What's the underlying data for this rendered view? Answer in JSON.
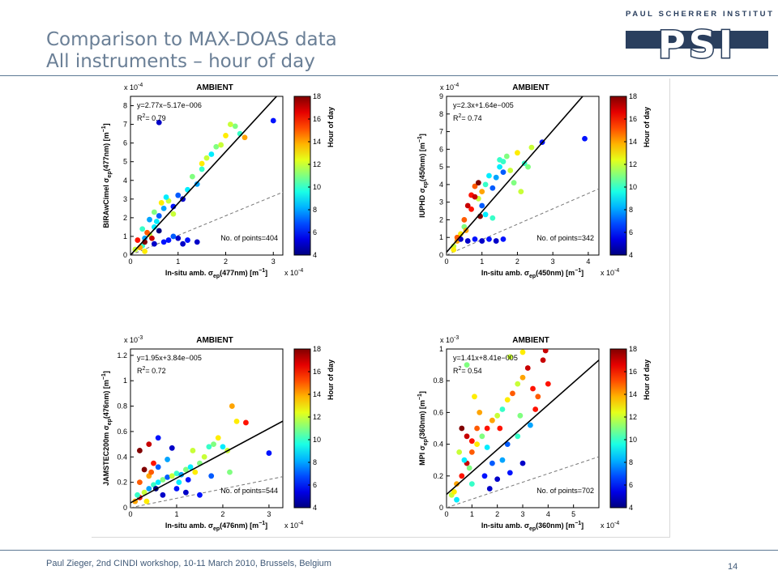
{
  "title": {
    "line1": "Comparison to MAX-DOAS data",
    "line2": "All instruments – hour of day"
  },
  "logo": {
    "text": "PAUL SCHERRER INSTITUT",
    "mark": "PSI"
  },
  "footer": {
    "text": "Paul Zieger, 2nd CINDI workshop, 10-11 March 2010, Brussels, Belgium",
    "page": "14"
  },
  "colors": {
    "title": "#6a7f96",
    "rule": "#5d7994",
    "logo": "#2a3f5e"
  },
  "chart_data": [
    {
      "type": "scatter",
      "title": "AMBIENT",
      "scale_label": "x 10",
      "scale_exp": "-4",
      "ylabel": "BIRAwCimel σ",
      "ylabel_sub": "ep",
      "ylabel_rest": "(477nm)  [m",
      "xlabel": "In-situ amb. σ",
      "xlabel_sub": "ep",
      "xlabel_rest": "(477nm)  [m",
      "xlabel_exp": "x 10",
      "xlabel_exp_pow": "-4",
      "equation": "y=2.77x−5.17e−006",
      "r2": "R",
      "r2_value": "= 0.79",
      "points_text": "No. of points=404",
      "xlim": [
        0,
        3.2
      ],
      "ylim": [
        0,
        8.5
      ],
      "xticks": [
        "0",
        "1",
        "2",
        "3"
      ],
      "xtick_values": [
        0,
        1,
        2,
        3
      ],
      "yticks": [
        "0",
        "1",
        "2",
        "3",
        "4",
        "5",
        "6",
        "7",
        "8"
      ],
      "ytick_values": [
        0,
        1,
        2,
        3,
        4,
        5,
        6,
        7,
        8
      ],
      "fit": {
        "slope": 2.77,
        "intercept": 0
      },
      "colorbar": {
        "label": "Hour of day",
        "min": 4,
        "max": 18,
        "ticks": [
          "4",
          "6",
          "8",
          "10",
          "12",
          "14",
          "16",
          "18"
        ]
      },
      "point_count": 404,
      "points": [
        [
          0.25,
          0.5,
          10
        ],
        [
          0.3,
          0.9,
          8
        ],
        [
          0.4,
          1.1,
          12
        ],
        [
          0.5,
          1.5,
          9
        ],
        [
          0.6,
          2.1,
          7
        ],
        [
          0.7,
          2.5,
          8
        ],
        [
          0.8,
          2.9,
          12
        ],
        [
          0.9,
          2.6,
          6
        ],
        [
          1.0,
          3.2,
          7
        ],
        [
          1.1,
          3.0,
          5
        ],
        [
          1.2,
          3.5,
          9
        ],
        [
          1.3,
          4.2,
          11
        ],
        [
          1.4,
          3.8,
          8
        ],
        [
          1.5,
          4.6,
          10
        ],
        [
          1.6,
          5.2,
          12
        ],
        [
          1.7,
          5.4,
          9
        ],
        [
          1.8,
          5.8,
          11
        ],
        [
          2.0,
          6.4,
          13
        ],
        [
          2.2,
          6.9,
          11
        ],
        [
          2.3,
          6.5,
          10
        ],
        [
          2.4,
          6.3,
          14
        ],
        [
          3.0,
          7.2,
          6
        ],
        [
          0.6,
          7.1,
          5
        ],
        [
          0.4,
          1.9,
          8
        ],
        [
          0.5,
          2.3,
          11
        ],
        [
          0.2,
          0.4,
          14
        ],
        [
          0.15,
          0.8,
          16
        ],
        [
          0.3,
          0.7,
          18
        ],
        [
          0.35,
          1.2,
          15
        ],
        [
          0.1,
          0.3,
          12
        ],
        [
          0.45,
          0.9,
          17
        ],
        [
          0.5,
          0.6,
          5
        ],
        [
          0.8,
          0.8,
          6
        ],
        [
          1.0,
          0.9,
          5
        ],
        [
          1.2,
          0.8,
          6
        ],
        [
          1.4,
          0.7,
          5
        ],
        [
          0.9,
          1.0,
          7
        ],
        [
          0.7,
          0.7,
          6
        ],
        [
          1.1,
          0.6,
          5
        ],
        [
          0.6,
          1.3,
          4
        ],
        [
          0.25,
          1.4,
          10
        ],
        [
          0.3,
          0.2,
          13
        ],
        [
          0.55,
          1.8,
          9
        ],
        [
          0.9,
          2.2,
          12
        ],
        [
          1.5,
          4.9,
          13
        ],
        [
          1.9,
          5.9,
          12
        ],
        [
          0.75,
          3.1,
          9
        ],
        [
          0.65,
          2.8,
          13
        ],
        [
          2.1,
          7.0,
          12
        ]
      ]
    },
    {
      "type": "scatter",
      "title": "AMBIENT",
      "scale_label": "x 10",
      "scale_exp": "-4",
      "ylabel": "IUPHD σ",
      "ylabel_sub": "ep",
      "ylabel_rest": "(450nm)  [m",
      "xlabel": "In-situ amb. σ",
      "xlabel_sub": "ep",
      "xlabel_rest": "(450nm)  [m",
      "xlabel_exp": "x 10",
      "xlabel_exp_pow": "-4",
      "equation": "y=2.3x+1.64e−005",
      "r2": "R",
      "r2_value": "= 0.74",
      "points_text": "No. of points=342",
      "xlim": [
        0,
        4.3
      ],
      "ylim": [
        0,
        9
      ],
      "xticks": [
        "0",
        "1",
        "2",
        "3",
        "4"
      ],
      "xtick_values": [
        0,
        1,
        2,
        3,
        4
      ],
      "yticks": [
        "0",
        "1",
        "2",
        "3",
        "4",
        "5",
        "6",
        "7",
        "8",
        "9"
      ],
      "ytick_values": [
        0,
        1,
        2,
        3,
        4,
        5,
        6,
        7,
        8,
        9
      ],
      "fit": {
        "slope": 2.3,
        "intercept": 0.164
      },
      "colorbar": {
        "label": "Hour of day",
        "min": 4,
        "max": 18,
        "ticks": [
          "4",
          "6",
          "8",
          "10",
          "12",
          "14",
          "16",
          "18"
        ]
      },
      "point_count": 342,
      "points": [
        [
          0.2,
          0.5,
          12
        ],
        [
          0.3,
          0.8,
          14
        ],
        [
          0.4,
          1.2,
          13
        ],
        [
          0.5,
          2.0,
          15
        ],
        [
          0.6,
          2.8,
          17
        ],
        [
          0.7,
          3.4,
          16
        ],
        [
          0.8,
          3.9,
          15
        ],
        [
          0.9,
          3.2,
          12
        ],
        [
          1.0,
          3.6,
          14
        ],
        [
          1.1,
          4.0,
          10
        ],
        [
          1.2,
          4.5,
          9
        ],
        [
          1.3,
          3.8,
          7
        ],
        [
          1.4,
          4.4,
          8
        ],
        [
          1.5,
          5.0,
          9
        ],
        [
          1.6,
          5.3,
          10
        ],
        [
          1.7,
          5.6,
          11
        ],
        [
          1.8,
          4.8,
          12
        ],
        [
          2.0,
          5.8,
          13
        ],
        [
          2.2,
          5.2,
          10
        ],
        [
          2.4,
          6.1,
          12
        ],
        [
          2.7,
          6.4,
          6
        ],
        [
          3.9,
          6.6,
          6
        ],
        [
          0.9,
          4.1,
          18
        ],
        [
          0.8,
          3.3,
          17
        ],
        [
          0.7,
          2.6,
          16
        ],
        [
          1.0,
          2.8,
          7
        ],
        [
          0.4,
          0.9,
          5
        ],
        [
          0.6,
          0.8,
          5
        ],
        [
          0.8,
          0.9,
          6
        ],
        [
          1.0,
          0.8,
          5
        ],
        [
          1.2,
          0.9,
          6
        ],
        [
          1.4,
          0.8,
          5
        ],
        [
          1.6,
          0.9,
          6
        ],
        [
          0.5,
          1.6,
          11
        ],
        [
          0.3,
          1.0,
          15
        ],
        [
          0.2,
          0.3,
          13
        ],
        [
          1.1,
          2.3,
          9
        ],
        [
          1.3,
          2.1,
          10
        ],
        [
          1.9,
          4.1,
          11
        ],
        [
          2.1,
          3.6,
          12
        ],
        [
          1.6,
          4.7,
          7
        ],
        [
          0.95,
          2.2,
          18
        ],
        [
          0.55,
          1.4,
          14
        ],
        [
          1.5,
          5.4,
          10
        ],
        [
          2.3,
          5.0,
          11
        ]
      ]
    },
    {
      "type": "scatter",
      "title": "AMBIENT",
      "scale_label": "x 10",
      "scale_exp": "-3",
      "ylabel": "JAMSTEC200m σ",
      "ylabel_sub": "ep",
      "ylabel_rest": "(476nm)  [m",
      "xlabel": "In-situ amb. σ",
      "xlabel_sub": "ep",
      "xlabel_rest": "(476nm)  [m",
      "xlabel_exp": "x 10",
      "xlabel_exp_pow": "-4",
      "equation": "y=1.95x+3.84e−005",
      "r2": "R",
      "r2_value": "= 0.72",
      "points_text": "No. of points=544",
      "xlim": [
        0,
        3.3
      ],
      "ylim": [
        0,
        1.25
      ],
      "xticks": [
        "0",
        "1",
        "2",
        "3"
      ],
      "xtick_values": [
        0,
        1,
        2,
        3
      ],
      "yticks": [
        "0",
        "0.2",
        "0.4",
        "0.6",
        "0.8",
        "1",
        "1.2"
      ],
      "ytick_values": [
        0,
        0.2,
        0.4,
        0.6,
        0.8,
        1,
        1.2
      ],
      "fit": {
        "slope": 0.195,
        "intercept": 0.0384
      },
      "colorbar": {
        "label": "Hour of day",
        "min": 4,
        "max": 18,
        "ticks": [
          "4",
          "6",
          "8",
          "10",
          "12",
          "14",
          "16",
          "18"
        ]
      },
      "point_count": 544,
      "points": [
        [
          0.1,
          0.05,
          14
        ],
        [
          0.2,
          0.08,
          16
        ],
        [
          0.3,
          0.12,
          12
        ],
        [
          0.4,
          0.15,
          8
        ],
        [
          0.5,
          0.18,
          10
        ],
        [
          0.6,
          0.2,
          9
        ],
        [
          0.7,
          0.22,
          11
        ],
        [
          0.8,
          0.24,
          7
        ],
        [
          0.9,
          0.25,
          12
        ],
        [
          1.0,
          0.27,
          10
        ],
        [
          1.1,
          0.26,
          8
        ],
        [
          1.2,
          0.3,
          11
        ],
        [
          1.3,
          0.32,
          9
        ],
        [
          1.4,
          0.28,
          13
        ],
        [
          1.5,
          0.35,
          11
        ],
        [
          1.6,
          0.4,
          12
        ],
        [
          1.7,
          0.48,
          10
        ],
        [
          1.8,
          0.5,
          11
        ],
        [
          1.9,
          0.55,
          13
        ],
        [
          2.0,
          0.48,
          9
        ],
        [
          2.1,
          0.45,
          12
        ],
        [
          2.2,
          0.8,
          14
        ],
        [
          2.3,
          0.68,
          13
        ],
        [
          2.5,
          0.67,
          16
        ],
        [
          3.0,
          0.43,
          6
        ],
        [
          0.2,
          0.45,
          18
        ],
        [
          0.4,
          0.5,
          17
        ],
        [
          0.6,
          0.55,
          6
        ],
        [
          0.9,
          0.47,
          5
        ],
        [
          0.3,
          0.3,
          18
        ],
        [
          0.5,
          0.35,
          16
        ],
        [
          0.2,
          0.2,
          15
        ],
        [
          0.4,
          0.25,
          14
        ],
        [
          0.7,
          0.1,
          5
        ],
        [
          1.0,
          0.15,
          6
        ],
        [
          1.2,
          0.12,
          5
        ],
        [
          1.5,
          0.1,
          6
        ],
        [
          0.6,
          0.32,
          7
        ],
        [
          0.8,
          0.38,
          8
        ],
        [
          1.05,
          0.2,
          9
        ],
        [
          0.35,
          0.05,
          13
        ],
        [
          0.15,
          0.1,
          10
        ],
        [
          1.35,
          0.45,
          12
        ],
        [
          1.75,
          0.25,
          7
        ],
        [
          2.15,
          0.28,
          11
        ],
        [
          0.45,
          0.28,
          15
        ],
        [
          0.55,
          0.15,
          4
        ],
        [
          1.25,
          0.22,
          6
        ]
      ]
    },
    {
      "type": "scatter",
      "title": "AMBIENT",
      "scale_label": "x 10",
      "scale_exp": "-3",
      "ylabel": "MPI σ",
      "ylabel_sub": "ep",
      "ylabel_rest": "(360nm)  [m",
      "xlabel": "In-situ amb. σ",
      "xlabel_sub": "ep",
      "xlabel_rest": "(360nm)  [m",
      "xlabel_exp": "x 10",
      "xlabel_exp_pow": "-4",
      "equation": "y=1.41x+8.41e−005",
      "r2": "R",
      "r2_value": "= 0.54",
      "points_text": "No. of points=702",
      "xlim": [
        0,
        6
      ],
      "ylim": [
        0,
        1
      ],
      "xticks": [
        "0",
        "1",
        "2",
        "3",
        "4",
        "5"
      ],
      "xtick_values": [
        0,
        1,
        2,
        3,
        4,
        5
      ],
      "yticks": [
        "0",
        "0.2",
        "0.4",
        "0.6",
        "0.8",
        "1"
      ],
      "ytick_values": [
        0,
        0.2,
        0.4,
        0.6,
        0.8,
        1
      ],
      "fit": {
        "slope": 0.141,
        "intercept": 0.0841
      },
      "colorbar": {
        "label": "Hour of day",
        "min": 4,
        "max": 18,
        "ticks": [
          "4",
          "6",
          "8",
          "10",
          "12",
          "14",
          "16",
          "18"
        ]
      },
      "point_count": 702,
      "points": [
        [
          0.2,
          0.08,
          12
        ],
        [
          0.4,
          0.15,
          14
        ],
        [
          0.6,
          0.2,
          16
        ],
        [
          0.8,
          0.28,
          17
        ],
        [
          1.0,
          0.35,
          15
        ],
        [
          1.2,
          0.4,
          13
        ],
        [
          1.4,
          0.45,
          11
        ],
        [
          1.6,
          0.5,
          16
        ],
        [
          1.8,
          0.55,
          14
        ],
        [
          2.0,
          0.58,
          12
        ],
        [
          2.2,
          0.62,
          10
        ],
        [
          2.4,
          0.68,
          13
        ],
        [
          2.6,
          0.72,
          15
        ],
        [
          2.8,
          0.78,
          12
        ],
        [
          3.0,
          0.82,
          14
        ],
        [
          3.2,
          0.88,
          17
        ],
        [
          3.4,
          0.75,
          16
        ],
        [
          3.6,
          0.7,
          15
        ],
        [
          3.8,
          0.93,
          17
        ],
        [
          4.0,
          0.78,
          16
        ],
        [
          2.5,
          0.95,
          12
        ],
        [
          3.0,
          0.98,
          13
        ],
        [
          3.9,
          0.99,
          17
        ],
        [
          0.8,
          0.9,
          11
        ],
        [
          0.6,
          0.5,
          18
        ],
        [
          0.8,
          0.45,
          17
        ],
        [
          1.0,
          0.42,
          16
        ],
        [
          1.2,
          0.5,
          15
        ],
        [
          0.5,
          0.35,
          12
        ],
        [
          0.7,
          0.3,
          9
        ],
        [
          1.5,
          0.2,
          6
        ],
        [
          2.0,
          0.18,
          5
        ],
        [
          2.5,
          0.22,
          6
        ],
        [
          3.0,
          0.28,
          5
        ],
        [
          1.8,
          0.28,
          7
        ],
        [
          2.2,
          0.3,
          8
        ],
        [
          1.0,
          0.15,
          10
        ],
        [
          0.3,
          0.1,
          13
        ],
        [
          0.9,
          0.25,
          11
        ],
        [
          1.6,
          0.38,
          9
        ],
        [
          2.8,
          0.45,
          10
        ],
        [
          3.3,
          0.52,
          8
        ],
        [
          2.4,
          0.4,
          7
        ],
        [
          1.3,
          0.6,
          14
        ],
        [
          1.1,
          0.7,
          13
        ],
        [
          3.5,
          0.62,
          16
        ],
        [
          2.9,
          0.58,
          11
        ],
        [
          1.7,
          0.12,
          5
        ],
        [
          0.4,
          0.05,
          9
        ],
        [
          2.1,
          0.5,
          16
        ]
      ]
    }
  ]
}
